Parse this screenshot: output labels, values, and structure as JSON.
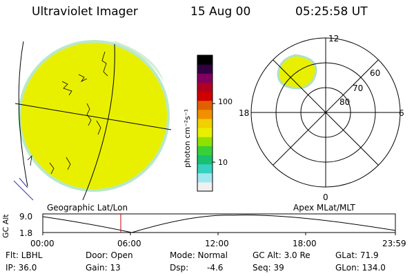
{
  "header": {
    "instrument": "Ultraviolet Imager",
    "date": "15 Aug 00",
    "time": "05:25:58 UT"
  },
  "colorbar": {
    "unit_label": "photon cm⁻²s⁻¹",
    "tick_100": "100",
    "tick_10": "10",
    "colors": [
      "#f0f0f0",
      "#a0e8f0",
      "#38d0c0",
      "#18c070",
      "#38d038",
      "#90e000",
      "#e8f000",
      "#f0d000",
      "#f09000",
      "#e06000",
      "#d00000",
      "#b00020",
      "#800060",
      "#300040",
      "#000000"
    ]
  },
  "polar_plot": {
    "mlt_top": "12",
    "mlt_left": "18",
    "mlt_right": "6",
    "mlt_bottom": "0",
    "lat_60": "60",
    "lat_70": "70",
    "lat_80": "80"
  },
  "altitude_plot": {
    "left_label": "Geographic Lat/Lon",
    "right_label": "Apex MLat/MLT",
    "ylabel": "GC Alt",
    "ytick_top": "9.0",
    "ytick_bottom": "1.8",
    "xticks": [
      "00:00",
      "06:00",
      "12:00",
      "18:00",
      "23:59"
    ]
  },
  "info": {
    "flt": "Flt: LBHL",
    "ip": "IP: 36.0",
    "door": "Door: Open",
    "gain": "Gain: 13",
    "mode": "Mode: Normal",
    "dsp_label": "Dsp:",
    "dsp_value": "-4.6",
    "gc_alt": "GC Alt: 3.0 Re",
    "seq": "Seq: 39",
    "glat": "GLat: 71.9",
    "glon": "GLon: 134.0"
  },
  "colors": {
    "earth_disk": "#e8f000",
    "disk_edge": "#b8e8c8",
    "current_time_marker": "#c00000"
  }
}
